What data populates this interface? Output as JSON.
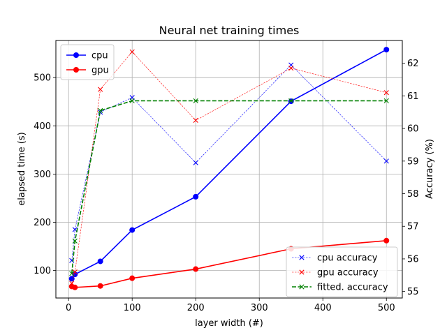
{
  "chart_data": {
    "type": "line",
    "title": "Neural net training times",
    "xlabel": "layer width (#)",
    "ylabel_left": "elapsed time (s)",
    "ylabel_right": "Accuracy (%)",
    "xlim": [
      -20,
      525
    ],
    "ylim_left": [
      43,
      577
    ],
    "ylim_right": [
      54.8,
      62.7
    ],
    "xticks": [
      0,
      100,
      200,
      300,
      400,
      500
    ],
    "yticks_left": [
      100,
      200,
      300,
      400,
      500
    ],
    "yticks_right": [
      55,
      56,
      57,
      58,
      59,
      60,
      61,
      62
    ],
    "grid": true,
    "legend_left_placement": "upper-left",
    "legend_right_placement": "lower-right",
    "series_left": [
      {
        "name": "cpu",
        "color": "#0000ff",
        "style": "solid",
        "marker": "circle",
        "x": [
          5,
          10,
          50,
          100,
          200,
          350,
          500
        ],
        "y": [
          83,
          92,
          119,
          184,
          253,
          451,
          558
        ]
      },
      {
        "name": "gpu",
        "color": "#ff0000",
        "style": "solid",
        "marker": "circle",
        "x": [
          5,
          10,
          50,
          100,
          200,
          350,
          500
        ],
        "y": [
          67,
          65,
          68,
          84,
          103,
          145,
          162
        ]
      }
    ],
    "series_right": [
      {
        "name": "cpu accuracy",
        "color": "#0000ff",
        "style": "dashed-thin",
        "marker": "x",
        "x": [
          5,
          10,
          50,
          100,
          200,
          350,
          500
        ],
        "y": [
          55.95,
          56.9,
          60.5,
          60.95,
          58.95,
          61.95,
          59.0
        ]
      },
      {
        "name": "gpu accuracy",
        "color": "#ff0000",
        "style": "dashed-thin",
        "marker": "x",
        "x": [
          5,
          10,
          50,
          100,
          200,
          350,
          500
        ],
        "y": [
          55.25,
          55.6,
          61.2,
          62.35,
          60.25,
          61.85,
          61.1
        ]
      },
      {
        "name": "fitted. accuracy",
        "color": "#008000",
        "style": "dashed",
        "marker": "x",
        "x": [
          5,
          10,
          50,
          100,
          200,
          350,
          500
        ],
        "y": [
          55.55,
          56.55,
          60.55,
          60.85,
          60.85,
          60.85,
          60.85
        ]
      }
    ]
  }
}
